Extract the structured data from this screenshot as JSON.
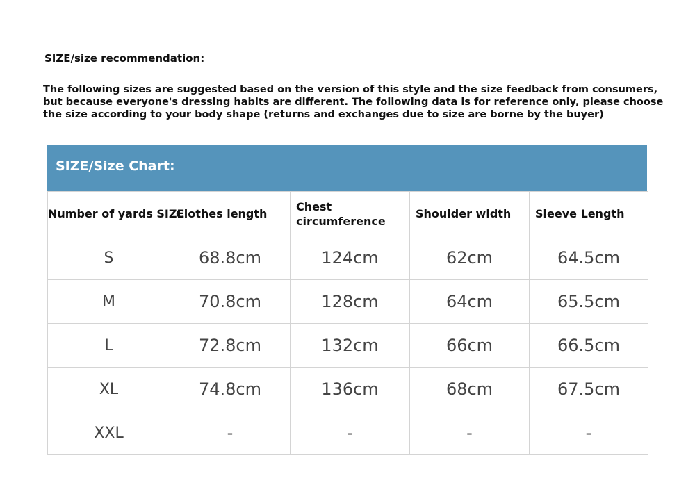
{
  "heading": "SIZE/size recommendation:",
  "intro": "The following sizes are suggested based on the version of this style and the size feedback from consumers, but because everyone's dressing habits are different. The following data is for reference only, please choose the size according to your body shape (returns and exchanges due to size are borne by the buyer)",
  "banner": {
    "title": "SIZE/Size Chart:",
    "color": "#5594bb"
  },
  "table": {
    "headers": [
      "Number of yards SIZE",
      "Clothes length",
      "Chest circumference",
      "Shoulder width",
      "Sleeve Length"
    ],
    "rows": [
      [
        "S",
        "68.8cm",
        "124cm",
        "62cm",
        "64.5cm"
      ],
      [
        "M",
        "70.8cm",
        "128cm",
        "64cm",
        "65.5cm"
      ],
      [
        "L",
        "72.8cm",
        "132cm",
        "66cm",
        "66.5cm"
      ],
      [
        "XL",
        "74.8cm",
        "136cm",
        "68cm",
        "67.5cm"
      ],
      [
        "XXL",
        "-",
        "-",
        "-",
        "-"
      ]
    ]
  }
}
